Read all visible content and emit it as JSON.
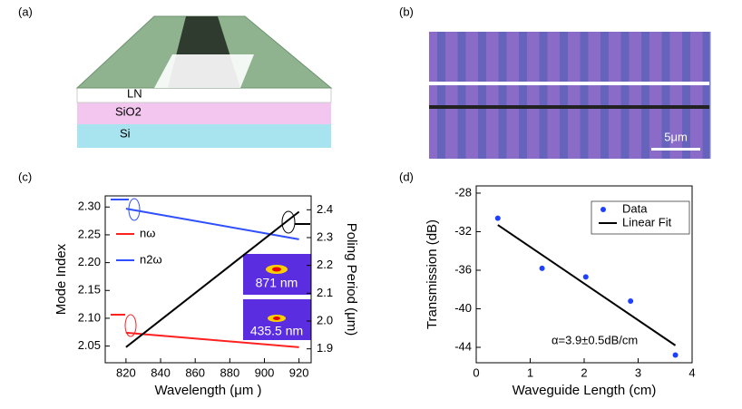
{
  "panels": [
    "(a)",
    "(b)",
    "(c)",
    "(d)"
  ],
  "schematic": {
    "layers": [
      "LN",
      "SiO2",
      "Si"
    ]
  },
  "micrograph": {
    "scale_bar": "5μm"
  },
  "chart_data": [
    {
      "type": "line",
      "xlabel": "Wavelength (μm )",
      "ylabel": "Mode Index",
      "y2label": "Poling Period  (μm)",
      "x": [
        820,
        920
      ],
      "xlim": [
        808,
        927
      ],
      "xticks": [
        820,
        840,
        860,
        880,
        900,
        920
      ],
      "ylim": [
        2.02,
        2.32
      ],
      "yticks": [
        2.05,
        {
          "value": 2.1,
          "label": "2.10"
        },
        2.15,
        {
          "value": 2.2,
          "label": "2.20"
        },
        2.25,
        {
          "value": 2.3,
          "label": "2.30"
        }
      ],
      "y2lim": [
        1.85,
        2.45
      ],
      "y2ticks": [
        1.9,
        {
          "value": 2.0,
          "label": "2.0"
        },
        2.1,
        2.2,
        2.3,
        2.4
      ],
      "series": [
        {
          "name": "nω",
          "color": "#ff2020",
          "values": [
            2.074,
            2.048
          ]
        },
        {
          "name": "n2ω",
          "color": "#3050ff",
          "values": [
            2.297,
            2.242
          ]
        },
        {
          "color": "#000000",
          "axis": "y2",
          "values": [
            1.906,
            2.393
          ]
        }
      ],
      "annotations": [
        "871 nm",
        "435.5 nm"
      ]
    },
    {
      "type": "scatter",
      "xlabel": "Waveguide Length (cm)",
      "ylabel": "Transmission (dB)",
      "xlim": [
        0,
        4
      ],
      "xticks": [
        0,
        1,
        2,
        3,
        4
      ],
      "ylim": [
        -45.6,
        -27.25
      ],
      "yticks": [
        -28,
        -32,
        -36,
        -40,
        -44
      ],
      "series": [
        {
          "name": "Data",
          "color": "#2040ff",
          "mark": "scatter",
          "x": [
            0.4,
            1.22,
            2.03,
            2.86,
            3.69
          ],
          "values": [
            -30.6,
            -35.8,
            -36.7,
            -39.2,
            -44.8
          ]
        },
        {
          "name": "Linear Fit",
          "color": "#000000",
          "mark": "line",
          "x": [
            0.4,
            3.69
          ],
          "values": [
            -31.3,
            -43.8
          ]
        }
      ],
      "annotations": [
        "α=3.9±0.5dB/cm"
      ]
    }
  ]
}
